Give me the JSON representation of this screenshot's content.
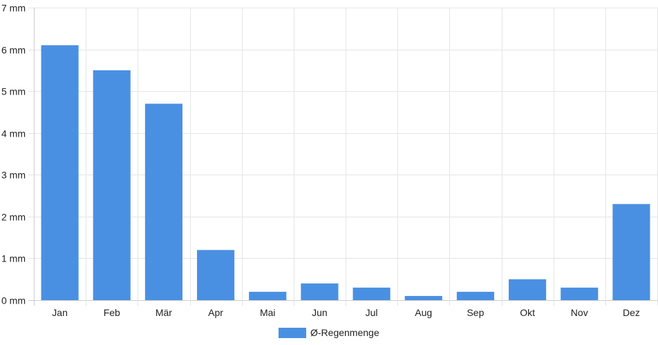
{
  "chart_data": {
    "type": "bar",
    "categories": [
      "Jan",
      "Feb",
      "Mär",
      "Apr",
      "Mai",
      "Jun",
      "Jul",
      "Aug",
      "Sep",
      "Okt",
      "Nov",
      "Dez"
    ],
    "series": [
      {
        "name": "Ø-Regenmenge",
        "values": [
          6.1,
          5.5,
          4.7,
          1.2,
          0.2,
          0.4,
          0.3,
          0.1,
          0.2,
          0.5,
          0.3,
          2.3
        ],
        "color": "#4a90e2"
      }
    ],
    "y_unit": "mm",
    "y_ticks": [
      0,
      1,
      2,
      3,
      4,
      5,
      6,
      7
    ],
    "y_tick_labels": [
      "0 mm",
      "1 mm",
      "2 mm",
      "3 mm",
      "4 mm",
      "5 mm",
      "6 mm",
      "7 mm"
    ],
    "ylim": [
      0,
      7
    ],
    "grid": true,
    "legend_position": "bottom-center",
    "colors": {
      "bar": "#4a90e2",
      "grid": "#e5e5e5",
      "axis": "#cccccc",
      "text": "#222222"
    }
  }
}
